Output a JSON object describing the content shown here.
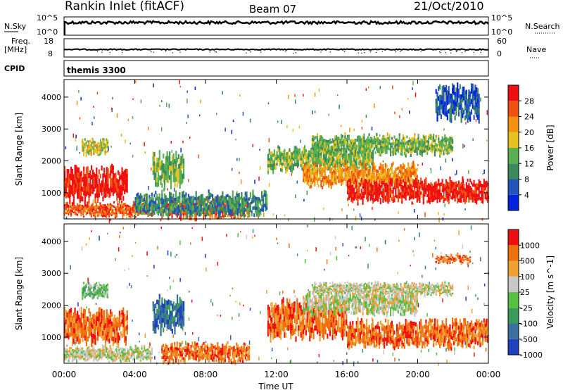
{
  "header": {
    "site": "Rankin Inlet (fitACF)",
    "beam": "Beam 07",
    "date": "21/Oct/2010"
  },
  "strips": {
    "nsky_label": "N.Sky",
    "nsky_ticks": [
      "10^5",
      "10^0"
    ],
    "nsearch_label": "N.Search",
    "nsearch_ticks": [
      "10^5",
      "10^0"
    ],
    "freq_label_1": "Freq.",
    "freq_label_2": "[MHz]",
    "freq_ticks": [
      "18",
      "8"
    ],
    "nave_label": "Nave",
    "nave_ticks": [
      "60",
      "0"
    ],
    "cpid_label": "CPID",
    "cpid_value": "themis 3300"
  },
  "chart_data": [
    {
      "type": "heatmap",
      "name": "power",
      "ylabel": "Slant Range [km]",
      "yticks": [
        "4000",
        "3000",
        "2000",
        "1000"
      ],
      "ylim": [
        180,
        4550
      ],
      "colorbar_label": "Power [dB]",
      "colorbar_ticks": [
        "28",
        "24",
        "20",
        "16",
        "12",
        "8",
        "4"
      ],
      "colors": [
        "#0022dd",
        "#2255bb",
        "#3a8a5a",
        "#58b050",
        "#e8c020",
        "#f39010",
        "#f05010",
        "#ee1010"
      ],
      "blobs": [
        {
          "t0": 0.0,
          "t1": 3.6,
          "r0": 800,
          "r1": 1800,
          "level": 7
        },
        {
          "t0": 0.0,
          "t1": 5.0,
          "r0": 250,
          "r1": 700,
          "level": 6
        },
        {
          "t0": 5.5,
          "t1": 10.5,
          "r0": 200,
          "r1": 800,
          "level": 6
        },
        {
          "t0": 4.0,
          "t1": 11.5,
          "r0": 300,
          "r1": 1000,
          "level": 2
        },
        {
          "t0": 5.0,
          "t1": 6.8,
          "r0": 1200,
          "r1": 2200,
          "level": 3
        },
        {
          "t0": 1.0,
          "t1": 2.5,
          "r0": 2200,
          "r1": 2700,
          "level": 4
        },
        {
          "t0": 11.5,
          "t1": 17.5,
          "r0": 1700,
          "r1": 2400,
          "level": 3
        },
        {
          "t0": 13.5,
          "t1": 20.0,
          "r0": 1200,
          "r1": 1900,
          "level": 5
        },
        {
          "t0": 16.0,
          "t1": 24.0,
          "r0": 700,
          "r1": 1400,
          "level": 7
        },
        {
          "t0": 14.0,
          "t1": 22.0,
          "r0": 2200,
          "r1": 2800,
          "level": 3
        },
        {
          "t0": 21.0,
          "t1": 23.5,
          "r0": 3300,
          "r1": 4300,
          "level": 1
        }
      ]
    },
    {
      "type": "heatmap",
      "name": "velocity",
      "ylabel": "Slant Range [km]",
      "yticks": [
        "4000",
        "3000",
        "2000",
        "1000"
      ],
      "ylim": [
        180,
        4550
      ],
      "colorbar_label": "Velocity [m s^-1]",
      "colorbar_ticks": [
        "1000",
        "500",
        "100",
        "25",
        "-25",
        "-100",
        "-500",
        "-1000"
      ],
      "colors": [
        "#2040c0",
        "#3a70a0",
        "#3a9a5a",
        "#58c040",
        "#c8c8c8",
        "#f0a030",
        "#f07010",
        "#ee1010"
      ],
      "blobs": [
        {
          "t0": 0.0,
          "t1": 3.6,
          "r0": 800,
          "r1": 1800,
          "level": 6
        },
        {
          "t0": 0.0,
          "t1": 5.0,
          "r0": 250,
          "r1": 700,
          "level": 4
        },
        {
          "t0": 5.5,
          "t1": 10.5,
          "r0": 200,
          "r1": 800,
          "level": 6
        },
        {
          "t0": 5.0,
          "t1": 6.8,
          "r0": 1200,
          "r1": 2200,
          "level": 1
        },
        {
          "t0": 1.0,
          "t1": 2.5,
          "r0": 2200,
          "r1": 2700,
          "level": 3
        },
        {
          "t0": 11.5,
          "t1": 16.0,
          "r0": 1000,
          "r1": 2100,
          "level": 6
        },
        {
          "t0": 13.5,
          "t1": 20.0,
          "r0": 1700,
          "r1": 2400,
          "level": 4
        },
        {
          "t0": 16.0,
          "t1": 24.0,
          "r0": 700,
          "r1": 1500,
          "level": 6
        },
        {
          "t0": 14.0,
          "t1": 22.0,
          "r0": 2300,
          "r1": 2700,
          "level": 4
        },
        {
          "t0": 21.0,
          "t1": 23.0,
          "r0": 3300,
          "r1": 3600,
          "level": 6
        }
      ]
    }
  ],
  "x_axis": {
    "label": "Time UT",
    "ticks": [
      "00:00",
      "04:00",
      "08:00",
      "12:00",
      "16:00",
      "20:00",
      "00:00"
    ],
    "range_hours": [
      0,
      24
    ]
  }
}
